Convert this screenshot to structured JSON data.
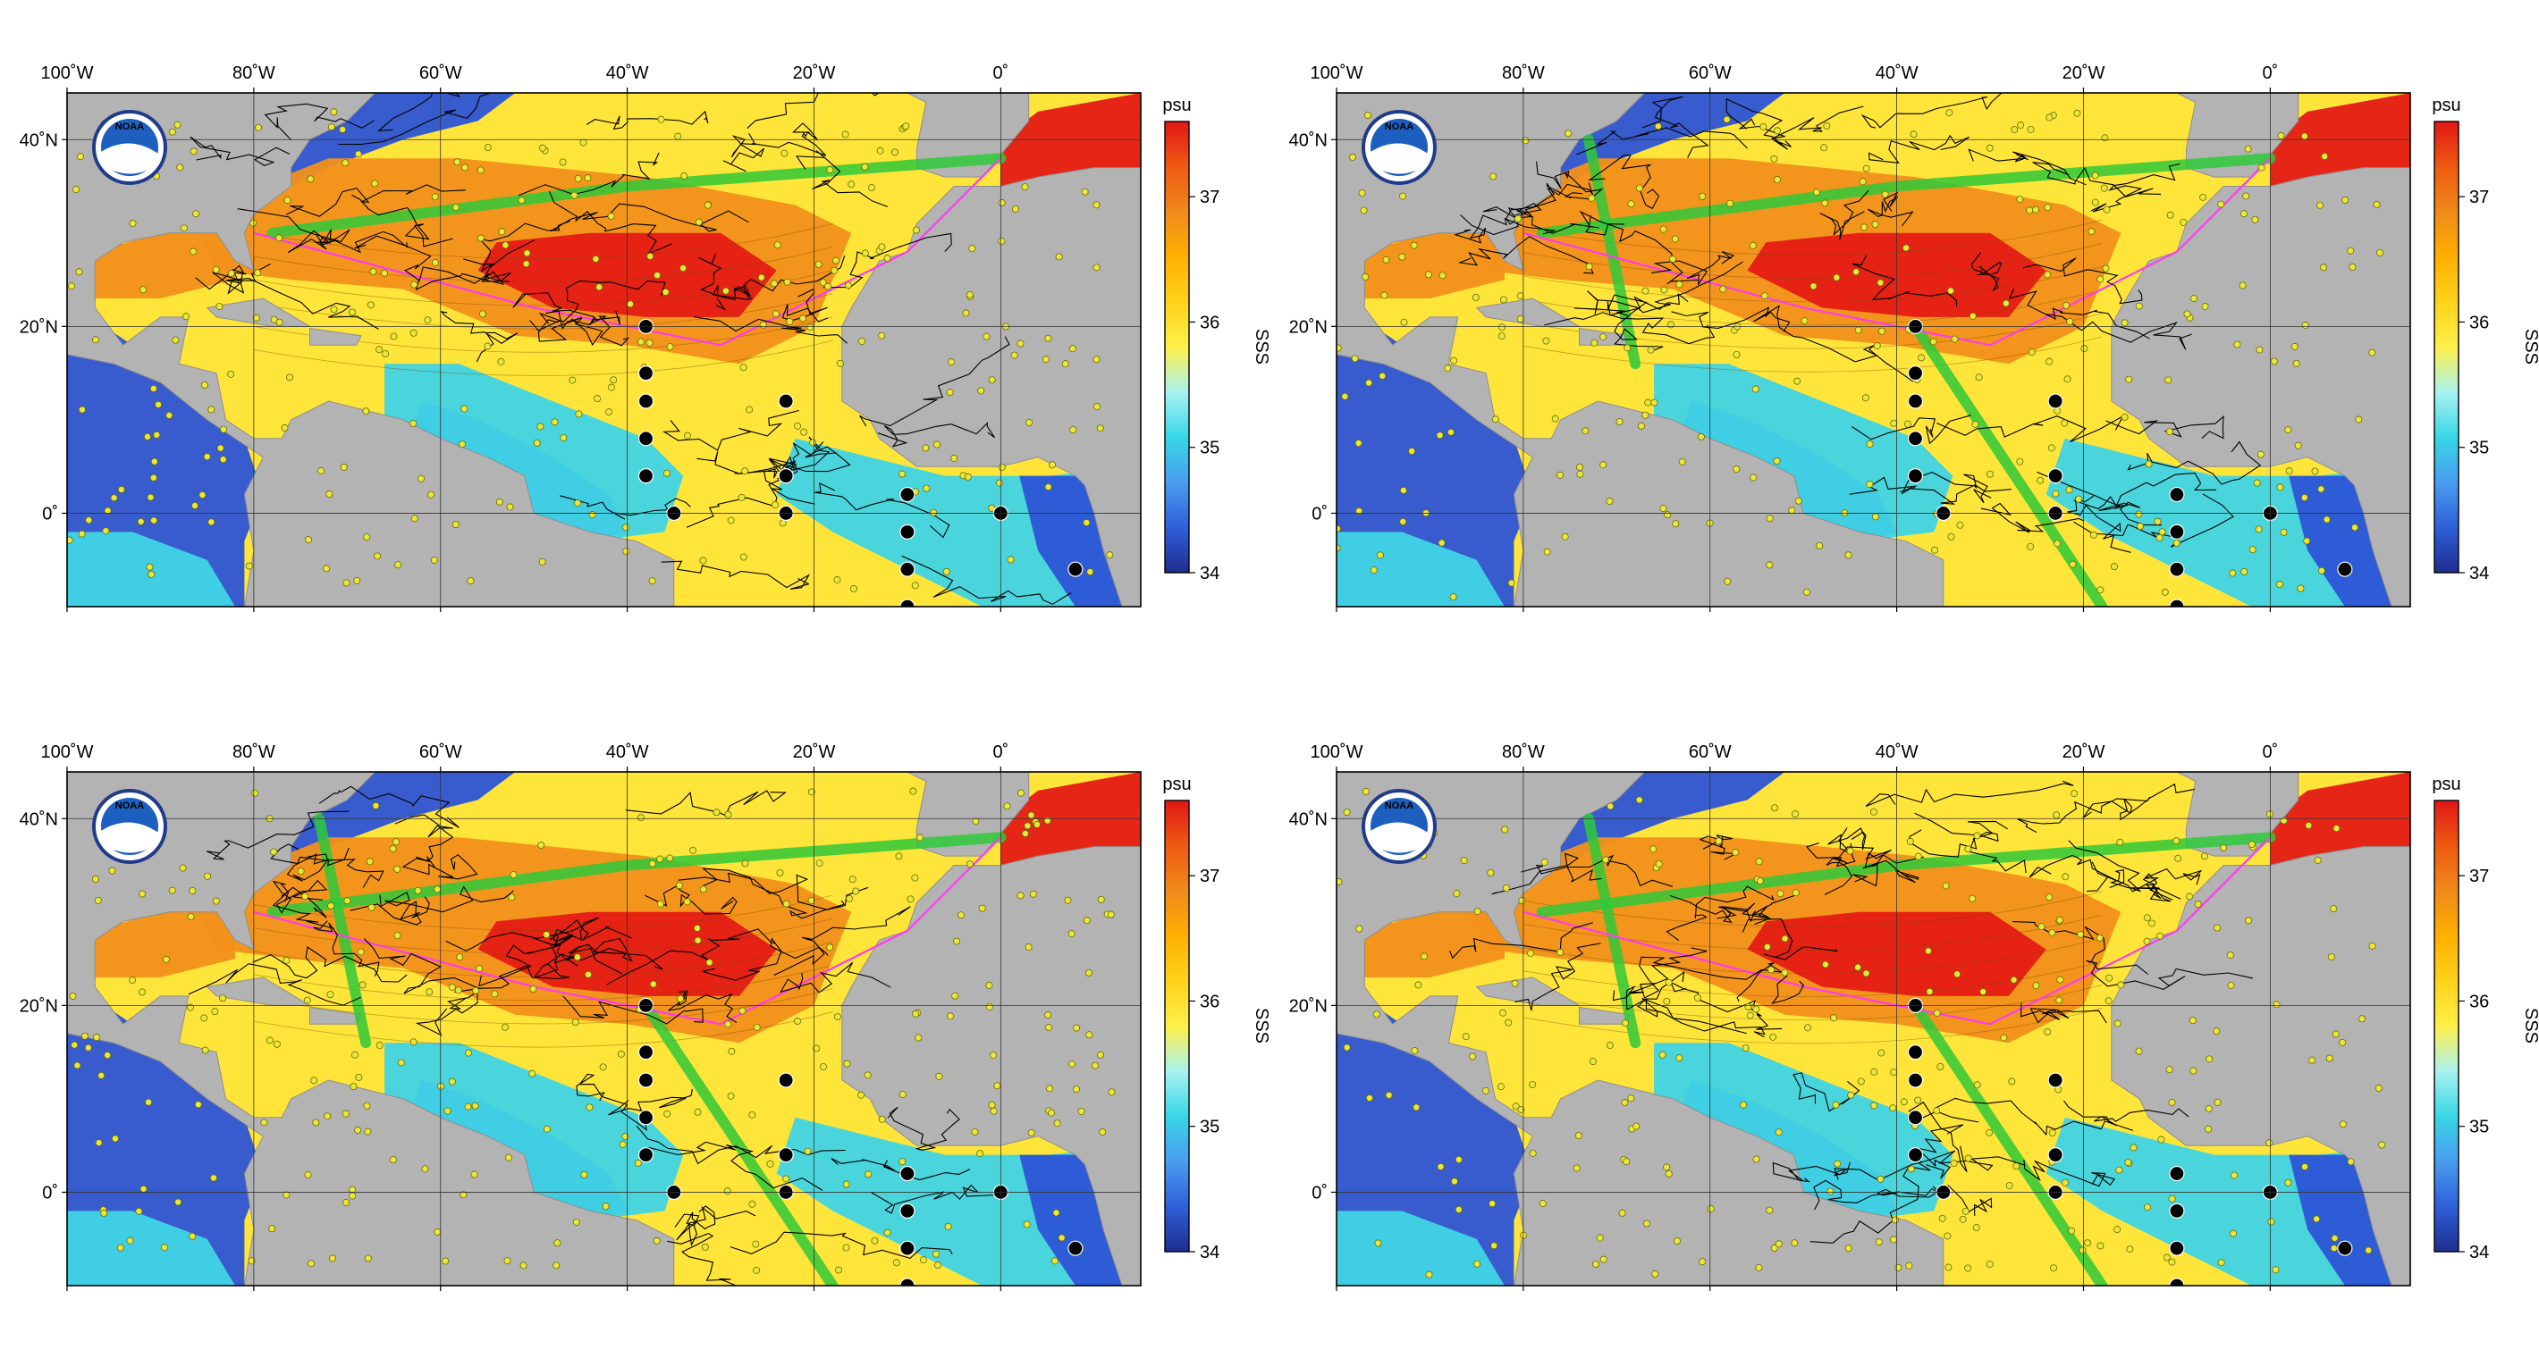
{
  "figure": {
    "panels": [
      {
        "id": "panel-1",
        "trackVariant": 0,
        "green_lines": 1
      },
      {
        "id": "panel-2",
        "trackVariant": 1,
        "green_lines": 3
      },
      {
        "id": "panel-3",
        "trackVariant": 2,
        "green_lines": 3
      },
      {
        "id": "panel-4",
        "trackVariant": 3,
        "green_lines": 3
      }
    ],
    "map": {
      "lon_range": [
        -100,
        15
      ],
      "lat_range": [
        -10,
        45
      ],
      "lon_ticks": [
        -100,
        -80,
        -60,
        -40,
        -20,
        0
      ],
      "lon_tick_labels": [
        "100˚W",
        "80˚W",
        "60˚W",
        "40˚W",
        "20˚W",
        "0˚"
      ],
      "lat_ticks": [
        40,
        20,
        0
      ],
      "lat_tick_labels": [
        "40˚N",
        "20˚N",
        "0˚"
      ]
    },
    "logo_text": "NOAA",
    "colorbar": {
      "unit": "psu",
      "label": "SSS",
      "range": [
        34,
        37.6
      ],
      "ticks": [
        34,
        35,
        36,
        37
      ],
      "tick_labels": [
        "34",
        "35",
        "36",
        "37"
      ],
      "colors": [
        "#1f2d8f",
        "#2f5fd9",
        "#4a9df0",
        "#37d7e6",
        "#a9f2f0",
        "#fff04a",
        "#ffd21a",
        "#ffb000",
        "#f08a1a",
        "#ee5a12",
        "#e21616"
      ]
    },
    "colors": {
      "land": "#b3b3b3",
      "ocean_fresh": "#2d54d6",
      "ocean_mid": "#3fd4e4",
      "ocean_36": "#ffe53a",
      "ocean_37": "#f2901a",
      "ocean_max": "#e41b14",
      "ship_track": "#2fc93a",
      "tsg_track": "#ff3cf0",
      "float_dot": "#e9e63c",
      "buoy": "#000000"
    }
  }
}
